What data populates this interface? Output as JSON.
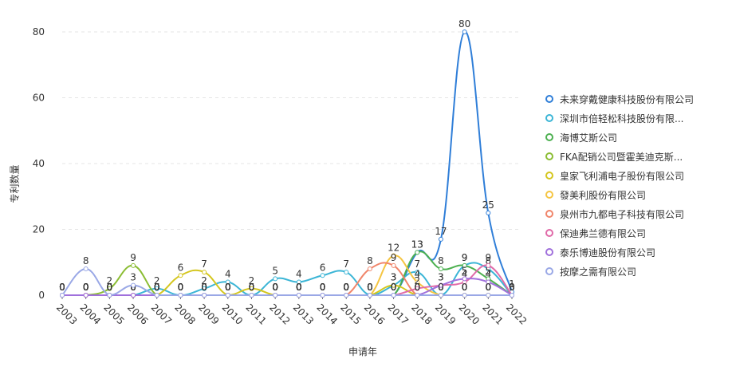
{
  "chart_data": {
    "type": "line",
    "xlabel": "申请年",
    "ylabel": "专利数量",
    "ylim": [
      0,
      80
    ],
    "yticks": [
      0,
      20,
      40,
      60,
      80
    ],
    "categories": [
      "2003",
      "2004",
      "2005",
      "2006",
      "2007",
      "2008",
      "2009",
      "2010",
      "2011",
      "2012",
      "2013",
      "2014",
      "2015",
      "2016",
      "2017",
      "2018",
      "2019",
      "2020",
      "2021",
      "2022"
    ],
    "legend_position": "right",
    "series": [
      {
        "name": "未来穿戴健康科技股份有限公司",
        "color": "#2f7ed8",
        "values": [
          0,
          0,
          0,
          0,
          0,
          0,
          0,
          0,
          0,
          0,
          0,
          0,
          0,
          0,
          0,
          13,
          17,
          80,
          25,
          1
        ]
      },
      {
        "name": "深圳市倍轻松科技股份有限...",
        "color": "#3bb5d6",
        "values": [
          0,
          0,
          0,
          0,
          2,
          0,
          2,
          4,
          0,
          5,
          4,
          6,
          7,
          0,
          3,
          7,
          0,
          9,
          8,
          0
        ]
      },
      {
        "name": "海博艾斯公司",
        "color": "#4cb050",
        "values": [
          0,
          0,
          0,
          0,
          0,
          0,
          0,
          0,
          0,
          0,
          0,
          0,
          0,
          0,
          0,
          13,
          8,
          9,
          5,
          0
        ]
      },
      {
        "name": "FKA配销公司暨霍美迪克斯...",
        "color": "#8bbd33",
        "values": [
          0,
          0,
          2,
          9,
          0,
          0,
          0,
          0,
          0,
          0,
          0,
          0,
          0,
          0,
          0,
          0,
          0,
          0,
          0,
          0
        ]
      },
      {
        "name": "皇家飞利浦电子股份有限公司",
        "color": "#d4c61e",
        "values": [
          0,
          0,
          0,
          0,
          0,
          6,
          7,
          0,
          2,
          0,
          0,
          0,
          0,
          0,
          3,
          0,
          0,
          0,
          0,
          0
        ]
      },
      {
        "name": "發美利股份有限公司",
        "color": "#f5c542",
        "values": [
          0,
          0,
          0,
          0,
          0,
          0,
          0,
          0,
          0,
          0,
          0,
          0,
          0,
          0,
          12,
          4,
          0,
          0,
          0,
          0
        ]
      },
      {
        "name": "泉州市九都电子科技有限公司",
        "color": "#f0856a",
        "values": [
          0,
          0,
          0,
          0,
          0,
          0,
          0,
          0,
          0,
          0,
          0,
          0,
          0,
          8,
          9,
          0,
          0,
          0,
          0,
          0
        ]
      },
      {
        "name": "保迪弗兰德有限公司",
        "color": "#e06aa8",
        "values": [
          0,
          0,
          0,
          0,
          0,
          0,
          0,
          0,
          0,
          0,
          0,
          0,
          0,
          0,
          0,
          2,
          3,
          4,
          9,
          0
        ]
      },
      {
        "name": "泰乐博迪股份有限公司",
        "color": "#a070dc",
        "values": [
          0,
          0,
          0,
          0,
          0,
          0,
          0,
          0,
          0,
          0,
          0,
          0,
          0,
          0,
          0,
          0,
          3,
          5,
          4,
          0
        ]
      },
      {
        "name": "按摩之需有限公司",
        "color": "#9aa8e6",
        "values": [
          0,
          8,
          0,
          3,
          0,
          0,
          0,
          0,
          0,
          0,
          0,
          0,
          0,
          0,
          0,
          0,
          0,
          0,
          0,
          0
        ]
      }
    ]
  }
}
